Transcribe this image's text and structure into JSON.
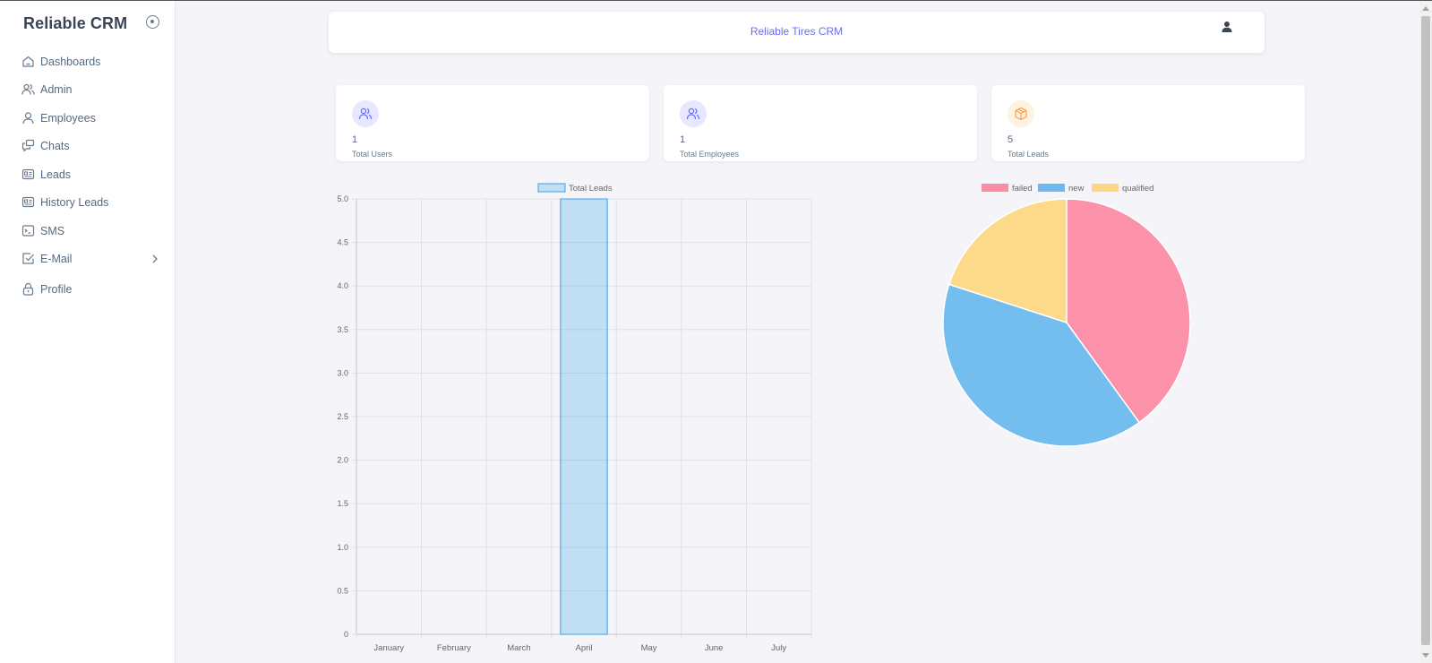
{
  "app": {
    "brand": "Reliable CRM"
  },
  "sidebar": {
    "items": [
      {
        "label": "Dashboards",
        "icon": "home-icon"
      },
      {
        "label": "Admin",
        "icon": "users-icon"
      },
      {
        "label": "Employees",
        "icon": "user-icon"
      },
      {
        "label": "Chats",
        "icon": "chats-icon"
      },
      {
        "label": "Leads",
        "icon": "id-card-icon"
      },
      {
        "label": "History Leads",
        "icon": "id-card-icon"
      },
      {
        "label": "SMS",
        "icon": "terminal-icon"
      },
      {
        "label": "E-Mail",
        "icon": "checkbox-icon"
      },
      {
        "label": "Profile",
        "icon": "lock-icon"
      }
    ]
  },
  "navbar": {
    "title": "Reliable Tires CRM"
  },
  "stats": [
    {
      "value": "1",
      "label": "Total Users",
      "icon": "users-icon",
      "color": "#696cff",
      "bg": "#e7e7ff"
    },
    {
      "value": "1",
      "label": "Total Employees",
      "icon": "users-icon",
      "color": "#696cff",
      "bg": "#e7e7ff"
    },
    {
      "value": "5",
      "label": "Total Leads",
      "icon": "cube-icon",
      "color": "#ff9f43",
      "bg": "#fff2e2"
    }
  ],
  "chart_data": [
    {
      "type": "bar",
      "categories": [
        "January",
        "February",
        "March",
        "April",
        "May",
        "June",
        "July"
      ],
      "series": [
        {
          "name": "Total Leads",
          "values": [
            0,
            0,
            0,
            5,
            0,
            0,
            0
          ],
          "color": "#36a2eb"
        }
      ],
      "ylim": [
        0,
        5
      ],
      "yticks": [
        "0",
        "0.5",
        "1.0",
        "1.5",
        "2.0",
        "2.5",
        "3.0",
        "3.5",
        "4.0",
        "4.5",
        "5.0"
      ],
      "grid": true,
      "legend": "top"
    },
    {
      "type": "pie",
      "slices": [
        {
          "label": "failed",
          "value": 2,
          "color": "#ff6384"
        },
        {
          "label": "new",
          "value": 2,
          "color": "#36a2eb"
        },
        {
          "label": "qualified",
          "value": 1,
          "color": "#ffcd56"
        }
      ],
      "legend": "top"
    }
  ]
}
